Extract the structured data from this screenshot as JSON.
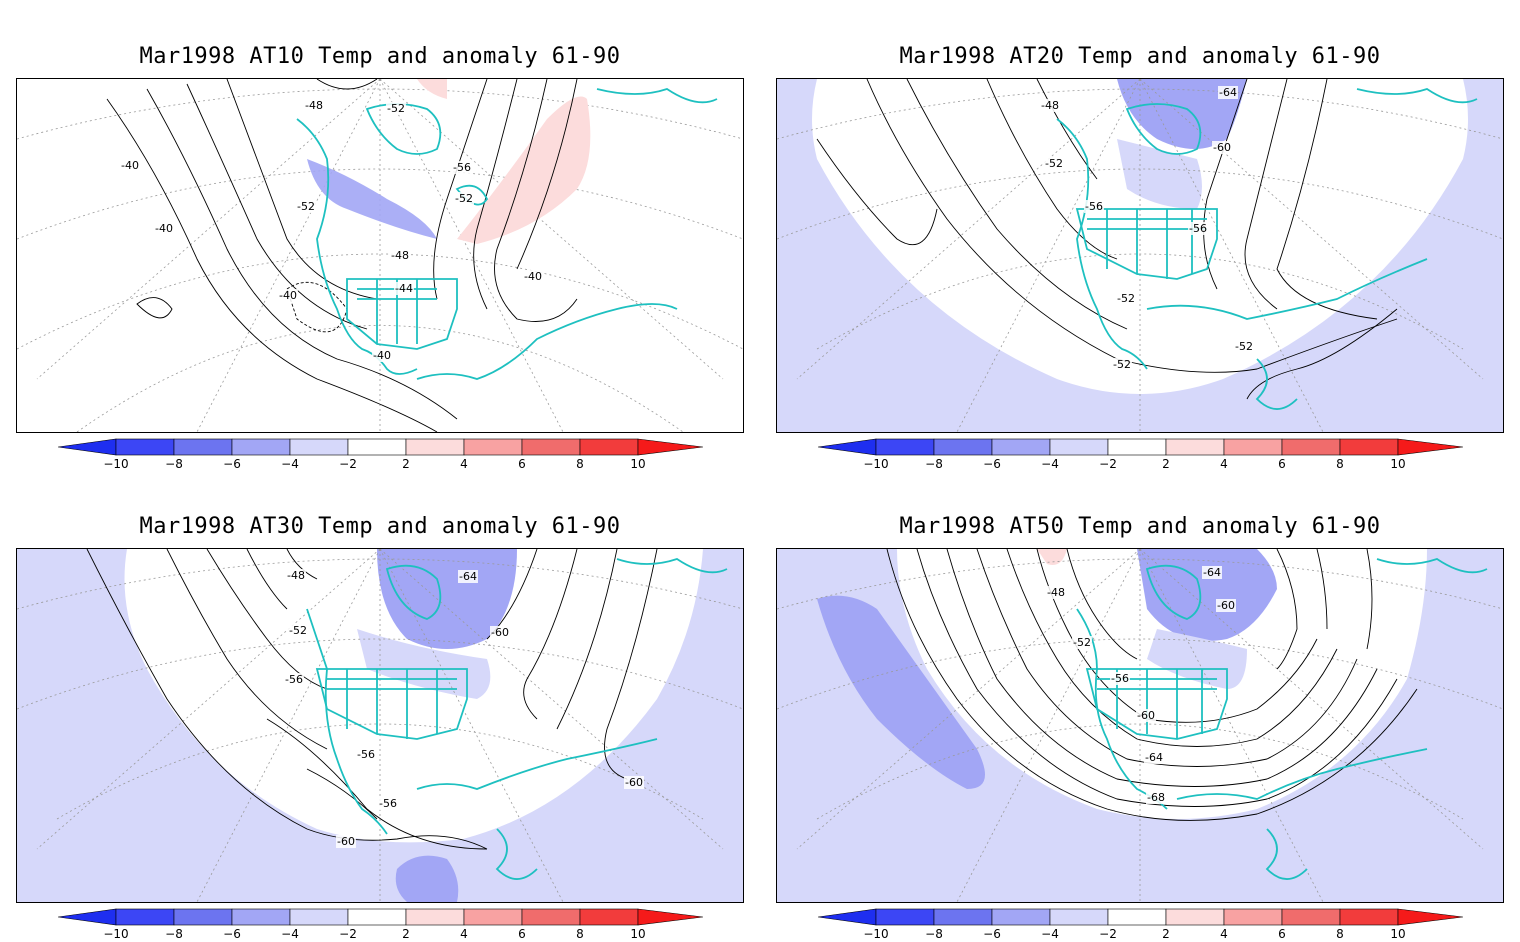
{
  "colorbar": {
    "labels": [
      "−10",
      "−8",
      "−6",
      "−4",
      "−2",
      "2",
      "4",
      "6",
      "8",
      "10"
    ],
    "colors": [
      "#1e2ef0",
      "#3c46f5",
      "#6c74f0",
      "#a2a6f5",
      "#d6d8fa",
      "#ffffff",
      "#fcdcdc",
      "#f8a2a2",
      "#f06c6c",
      "#f23c3c",
      "#f51a1a"
    ]
  },
  "panels": [
    {
      "title": "Mar1998 AT10 Temp and anomaly 61-90",
      "contour_labels": [
        "-48",
        "-52",
        "-40",
        "-40",
        "-52",
        "-56",
        "-52",
        "-48",
        "-44",
        "-40",
        "-40",
        "-40"
      ]
    },
    {
      "title": "Mar1998 AT20 Temp and anomaly 61-90",
      "contour_labels": [
        "-48",
        "-64",
        "-60",
        "-52",
        "-56",
        "-56",
        "-52",
        "-52",
        "-52"
      ]
    },
    {
      "title": "Mar1998 AT30 Temp and anomaly 61-90",
      "contour_labels": [
        "-48",
        "-64",
        "-52",
        "-60",
        "-56",
        "-56",
        "-56",
        "-60",
        "-60"
      ]
    },
    {
      "title": "Mar1998 AT50 Temp and anomaly 61-90",
      "contour_labels": [
        "-48",
        "-64",
        "-60",
        "-52",
        "-56",
        "-60",
        "-64",
        "-68"
      ]
    }
  ]
}
